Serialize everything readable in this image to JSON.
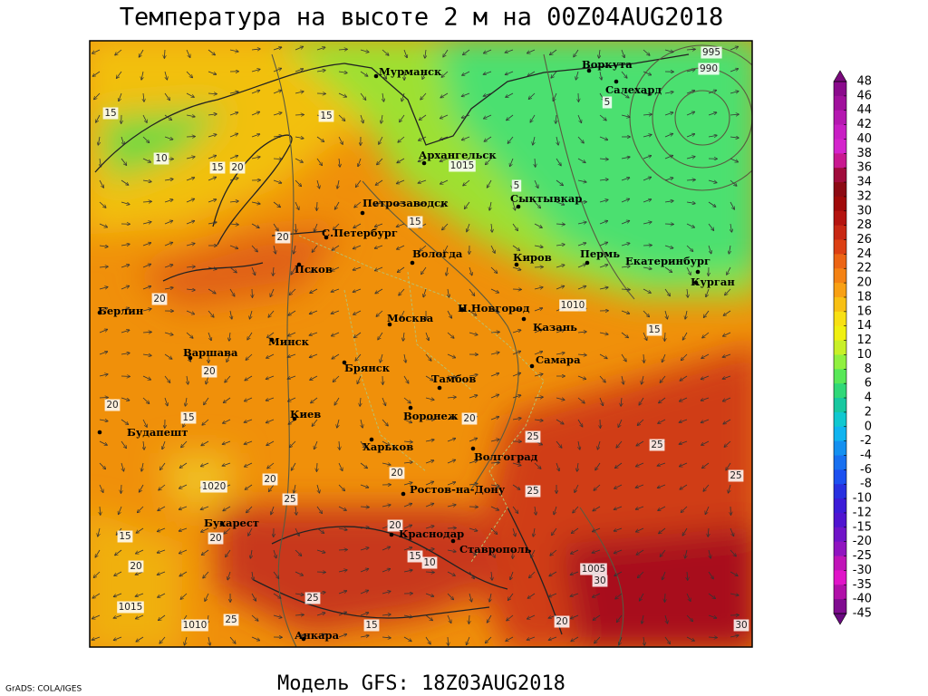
{
  "title": "Температура на высоте 2 м на 00Z04AUG2018",
  "footer": "Модель GFS: 18Z03AUG2018",
  "credit": "GrADS: COLA/IGES",
  "cities": [
    "Мурманск",
    "Воркута",
    "Салехард",
    "Архангельск",
    "Сыктывкар",
    "Петрозаводск",
    "С.Петербург",
    "Вологда",
    "Киров",
    "Пермь",
    "Екатеринбург",
    "Курган",
    "Псков",
    "Берлин",
    "Москва",
    "Н.Новгород",
    "Казань",
    "Минск",
    "Варшава",
    "Самара",
    "Брянск",
    "Тамбов",
    "Киев",
    "Воронеж",
    "Будапешт",
    "Харьков",
    "Волгоград",
    "Ростов-на-Дону",
    "Бухарест",
    "Краснодар",
    "Ставрополь",
    "Анкара"
  ],
  "contour_labels": [
    15,
    15,
    10,
    15,
    20,
    5,
    15,
    20,
    20,
    1010,
    15,
    20,
    20,
    15,
    20,
    25,
    25,
    25,
    1020,
    20,
    25,
    20,
    25,
    20,
    20,
    15,
    20,
    15,
    10,
    1005,
    30,
    1015,
    25,
    1010,
    25,
    15,
    20,
    30,
    995,
    990,
    1015,
    5
  ],
  "colorbar": {
    "ticks": [
      48,
      46,
      44,
      42,
      40,
      38,
      36,
      34,
      32,
      30,
      28,
      26,
      24,
      22,
      20,
      18,
      16,
      14,
      12,
      10,
      8,
      6,
      4,
      2,
      0,
      -2,
      -4,
      -6,
      -8,
      -10,
      -12,
      -15,
      -20,
      -25,
      -30,
      -35,
      -40,
      -45
    ]
  }
}
